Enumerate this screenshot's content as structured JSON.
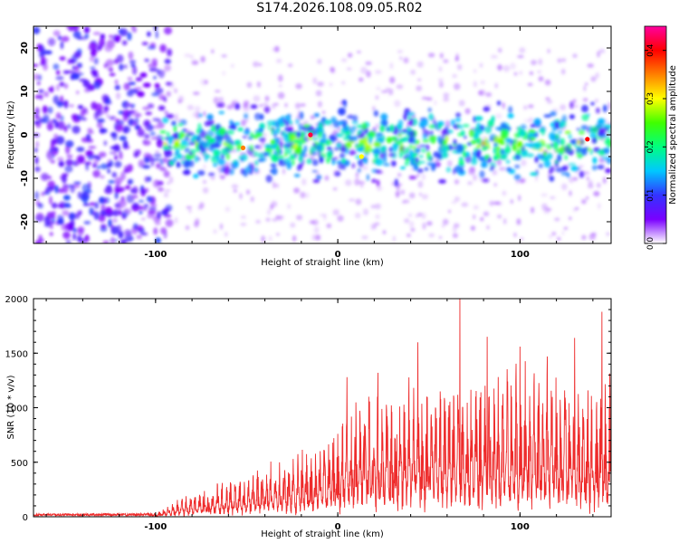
{
  "page": {
    "title": "S174.2026.108.09.05.R02"
  },
  "colors": {
    "snr_line": "#ee2b2b",
    "axis": "#000000",
    "colormap": [
      "#ffffff",
      "#7a00ff",
      "#3333ff",
      "#00c8ff",
      "#00ff80",
      "#40ff00",
      "#ffff00",
      "#ff8000",
      "#ff0000",
      "#ff00a0"
    ]
  },
  "chart_data": [
    {
      "type": "heatmap",
      "title": "S174.2026.108.09.05.R02",
      "xlabel": "Height of straight line (km)",
      "ylabel": "Frequency (Hz)",
      "xlim": [
        -167,
        150
      ],
      "ylim": [
        -25,
        25
      ],
      "xticks": [
        "-100",
        "0",
        "100"
      ],
      "xtick_values": [
        -100,
        0,
        100
      ],
      "yticks": [
        "20",
        "10",
        "0",
        "-10",
        "-20"
      ],
      "ytick_values": [
        20,
        10,
        0,
        -10,
        -20
      ],
      "colorbar": {
        "label": "Normalized spectral amplitude",
        "range": [
          0.0,
          0.45
        ],
        "ticks": [
          "0.0",
          "0.1",
          "0.2",
          "0.3",
          "0.4"
        ],
        "tick_values": [
          0.0,
          0.1,
          0.2,
          0.3,
          0.4
        ]
      },
      "regions": [
        {
          "name": "noise",
          "x_range": [
            -167,
            -96
          ],
          "freq_range": [
            -25,
            25
          ],
          "amplitude_range": [
            0.0,
            0.1
          ]
        },
        {
          "name": "signal-band",
          "x_range": [
            -96,
            150
          ],
          "freq_center": -2,
          "freq_halfwidth": 8,
          "amplitude_range": [
            0.05,
            0.45
          ]
        }
      ],
      "peaks": [
        {
          "x": -52,
          "freq": -3,
          "amplitude": 0.35
        },
        {
          "x": -15,
          "freq": 0,
          "amplitude": 0.42
        },
        {
          "x": 13,
          "freq": -5,
          "amplitude": 0.3
        },
        {
          "x": 137,
          "freq": -1,
          "amplitude": 0.4
        }
      ]
    },
    {
      "type": "line",
      "xlabel": "Height of straight line (km)",
      "ylabel": "SNR (10 * v/v)",
      "xlim": [
        -167,
        150
      ],
      "ylim": [
        0,
        2000
      ],
      "xticks": [
        "-100",
        "0",
        "100"
      ],
      "xtick_values": [
        -100,
        0,
        100
      ],
      "yticks": [
        "0",
        "500",
        "1000",
        "1500",
        "2000"
      ],
      "ytick_values": [
        0,
        500,
        1000,
        1500,
        2000
      ],
      "series": [
        {
          "name": "SNR",
          "x_range": [
            -167,
            150
          ],
          "envelope": [
            {
              "x": -167,
              "y": 20
            },
            {
              "x": -100,
              "y": 25
            },
            {
              "x": -90,
              "y": 120
            },
            {
              "x": -70,
              "y": 220
            },
            {
              "x": -50,
              "y": 330
            },
            {
              "x": -30,
              "y": 430
            },
            {
              "x": -10,
              "y": 520
            },
            {
              "x": 10,
              "y": 900
            },
            {
              "x": 30,
              "y": 1000
            },
            {
              "x": 50,
              "y": 1050
            },
            {
              "x": 70,
              "y": 1050
            },
            {
              "x": 100,
              "y": 1100
            },
            {
              "x": 150,
              "y": 1050
            }
          ],
          "spikes": [
            {
              "x": 5,
              "y": 1280
            },
            {
              "x": 22,
              "y": 1320
            },
            {
              "x": 44,
              "y": 1600
            },
            {
              "x": 67,
              "y": 2000
            },
            {
              "x": 82,
              "y": 1650
            },
            {
              "x": 100,
              "y": 1560
            },
            {
              "x": 115,
              "y": 1470
            },
            {
              "x": 130,
              "y": 1640
            },
            {
              "x": 145,
              "y": 1880
            }
          ]
        }
      ]
    }
  ]
}
